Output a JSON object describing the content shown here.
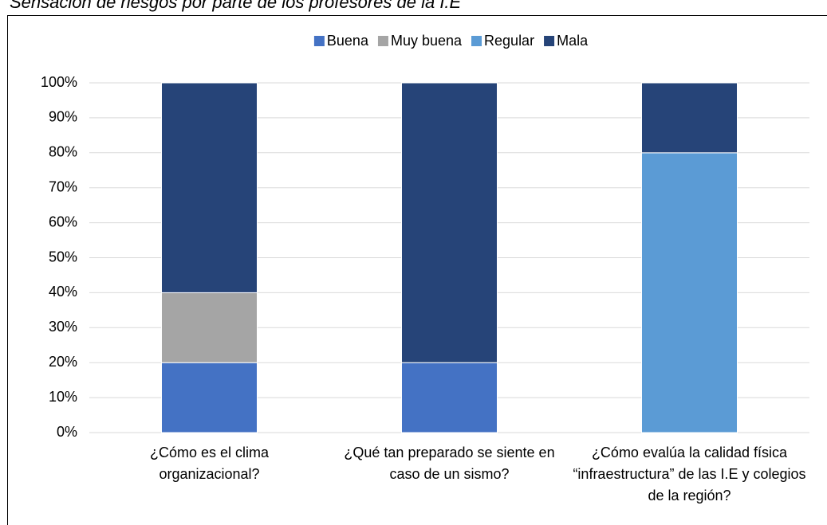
{
  "chart_data": {
    "type": "bar",
    "stacked": true,
    "title": "Sensación de riesgos por parte de los profesores de la I.E",
    "categories": [
      "¿Cómo es el clima organizacional?",
      "¿Qué tan preparado se siente en caso de un sismo?",
      "¿Cómo evalúa la calidad física “infraestructura” de las I.E y colegios de la región?"
    ],
    "series": [
      {
        "name": "Buena",
        "color": "#4472c4",
        "values": [
          20,
          20,
          0
        ]
      },
      {
        "name": "Muy buena",
        "color": "#a5a5a5",
        "values": [
          20,
          0,
          0
        ]
      },
      {
        "name": "Regular",
        "color": "#5b9bd5",
        "values": [
          0,
          0,
          80
        ]
      },
      {
        "name": "Mala",
        "color": "#264478",
        "values": [
          60,
          80,
          20
        ]
      }
    ],
    "ylim": [
      0,
      100
    ],
    "yticks": [
      {
        "value": 0,
        "label": "0%"
      },
      {
        "value": 10,
        "label": "10%"
      },
      {
        "value": 20,
        "label": "20%"
      },
      {
        "value": 30,
        "label": "30%"
      },
      {
        "value": 40,
        "label": "40%"
      },
      {
        "value": 50,
        "label": "50%"
      },
      {
        "value": 60,
        "label": "60%"
      },
      {
        "value": 70,
        "label": "70%"
      },
      {
        "value": 80,
        "label": "80%"
      },
      {
        "value": 90,
        "label": "90%"
      },
      {
        "value": 100,
        "label": "100%"
      }
    ],
    "grid": true,
    "legend": "top"
  }
}
